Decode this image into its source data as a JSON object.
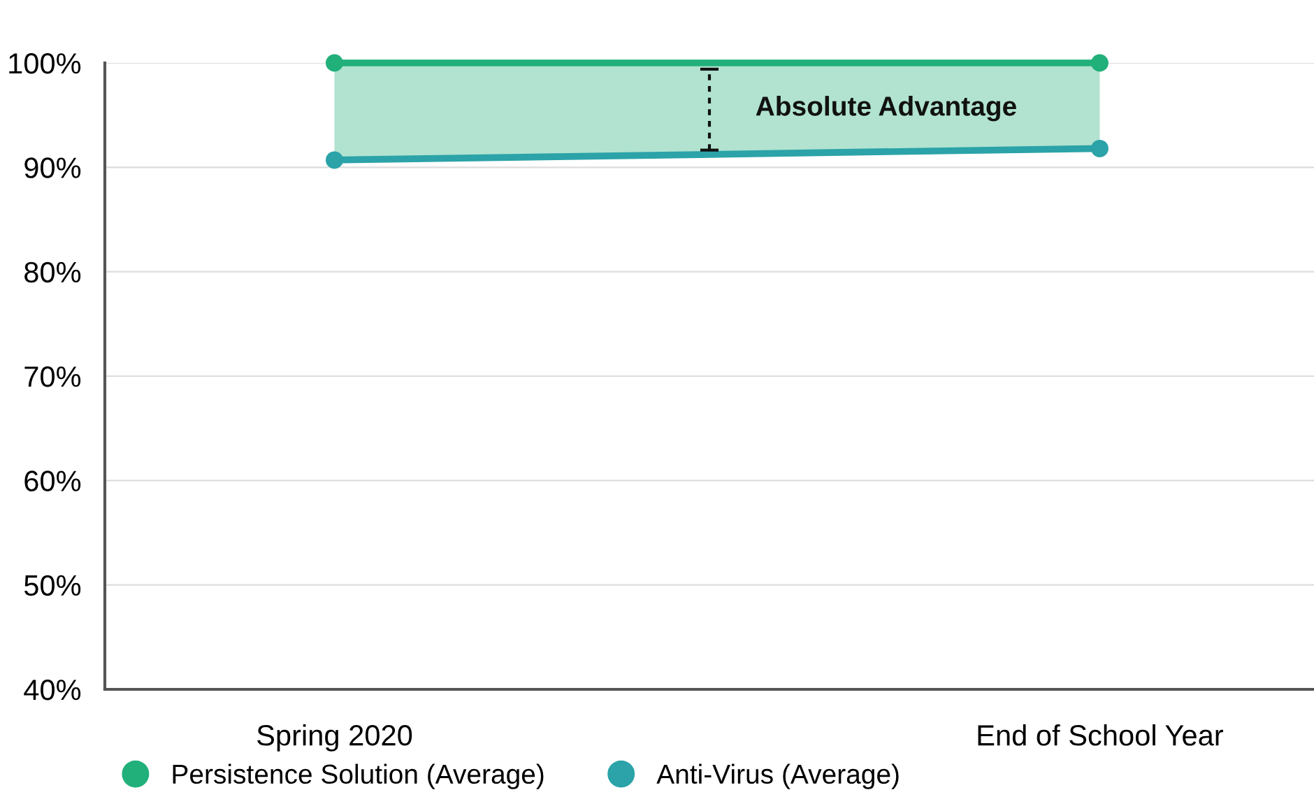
{
  "chart_data": {
    "type": "line",
    "categories": [
      "Spring 2020",
      "End of School Year"
    ],
    "series": [
      {
        "name": "Persistence Solution (Average)",
        "color": "#21b07a",
        "values": [
          100,
          100
        ],
        "lower": [
          90.7,
          91.8
        ],
        "upper": [
          100,
          100
        ]
      },
      {
        "name": "Anti-Virus (Average)",
        "color": "#2ba3a8",
        "values": [
          90.7,
          91.8
        ]
      }
    ],
    "annotations": [
      "Absolute Advantage"
    ],
    "ylim": [
      40,
      100
    ],
    "yticks": [
      {
        "value": 40,
        "label": "40%"
      },
      {
        "value": 50,
        "label": "50%"
      },
      {
        "value": 60,
        "label": "60%"
      },
      {
        "value": 70,
        "label": "70%"
      },
      {
        "value": 80,
        "label": "80%"
      },
      {
        "value": 90,
        "label": "90%"
      },
      {
        "value": 100,
        "label": "100%"
      }
    ],
    "grid": "y",
    "legend": "bottom left",
    "marker": "circle",
    "line_style": "solid"
  }
}
